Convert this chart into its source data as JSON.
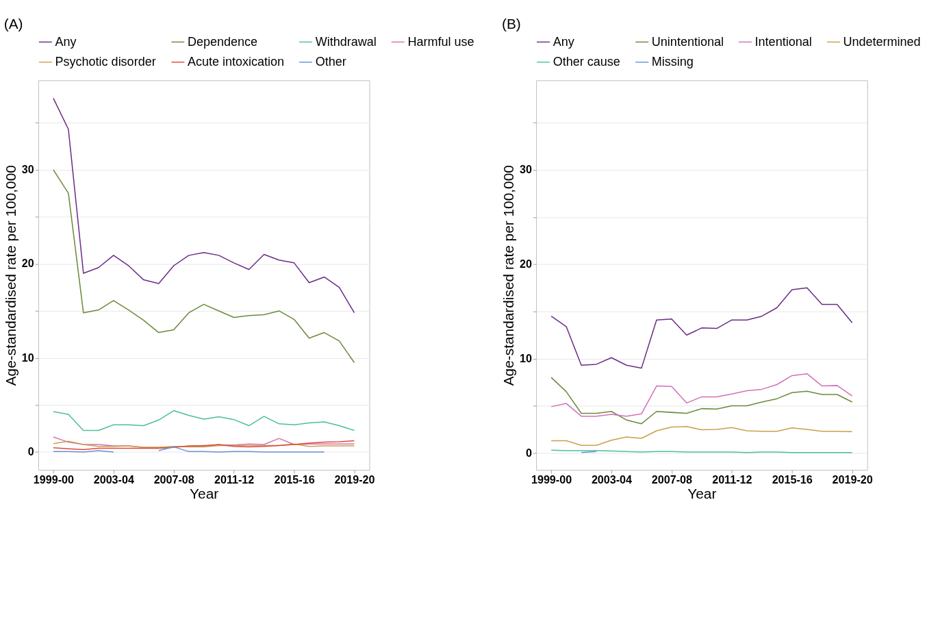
{
  "chart_data": [
    {
      "type": "line",
      "title": "(A)",
      "xlabel": "Year",
      "ylabel": "Age-standardised rate per 100,000",
      "categories": [
        "1999-00",
        null,
        null,
        null,
        "2003-04",
        null,
        null,
        null,
        "2007-08",
        null,
        null,
        null,
        "2011-12",
        null,
        null,
        null,
        "2015-16",
        null,
        null,
        null,
        "2019-20"
      ],
      "series": [
        {
          "name": "Any",
          "color": "#6a2c86",
          "values": [
            37.6,
            34.3,
            19.0,
            19.6,
            20.9,
            19.8,
            18.3,
            17.9,
            19.8,
            20.9,
            21.2,
            20.9,
            20.1,
            19.4,
            21.0,
            20.4,
            20.1,
            18.0,
            18.6,
            17.5,
            14.8
          ]
        },
        {
          "name": "Dependence",
          "color": "#6b8a3a",
          "values": [
            30.0,
            27.5,
            14.8,
            15.1,
            16.1,
            15.1,
            14.0,
            12.7,
            13.0,
            14.8,
            15.7,
            15.0,
            14.3,
            14.5,
            14.6,
            15.0,
            14.1,
            12.1,
            12.7,
            11.8,
            9.5
          ]
        },
        {
          "name": "Withdrawal",
          "color": "#4dbf99",
          "values": [
            4.3,
            4.0,
            2.3,
            2.3,
            2.9,
            2.9,
            2.8,
            3.4,
            4.4,
            3.9,
            3.5,
            3.75,
            3.45,
            2.8,
            3.8,
            3.0,
            2.9,
            3.1,
            3.2,
            2.8,
            2.3
          ]
        },
        {
          "name": "Harmful use",
          "color": "#d46fb8",
          "values": [
            1.6,
            1.05,
            0.8,
            0.8,
            0.65,
            0.65,
            0.5,
            0.5,
            0.55,
            0.6,
            0.7,
            0.75,
            0.75,
            0.85,
            0.8,
            1.45,
            0.8,
            0.85,
            0.85,
            0.85,
            0.85
          ]
        },
        {
          "name": "Psychotic disorder",
          "color": "#c9a04a",
          "values": [
            0.9,
            1.15,
            0.8,
            0.6,
            0.6,
            0.65,
            0.5,
            0.5,
            0.6,
            0.55,
            0.55,
            0.7,
            0.7,
            0.7,
            0.7,
            0.7,
            0.85,
            0.6,
            0.65,
            0.65,
            0.65
          ]
        },
        {
          "name": "Acute intoxication",
          "color": "#e0483a",
          "values": [
            0.45,
            0.35,
            0.25,
            0.4,
            0.4,
            0.4,
            0.4,
            0.4,
            0.5,
            0.65,
            0.65,
            0.8,
            0.6,
            0.55,
            0.6,
            0.7,
            0.8,
            0.95,
            1.05,
            1.1,
            1.2
          ]
        },
        {
          "name": "Other",
          "color": "#6a8fd8",
          "values": [
            0.05,
            0.05,
            0.0,
            0.15,
            0.0,
            null,
            null,
            0.15,
            0.55,
            0.05,
            0.05,
            0.0,
            0.05,
            0.05,
            0.0,
            0.0,
            0.0,
            0.0,
            0.0,
            null,
            null
          ]
        }
      ],
      "ylim": [
        -1.9,
        39.5
      ],
      "yticks": [
        0,
        {
          "value": 5,
          "label": null
        },
        10,
        {
          "value": 15,
          "label": null
        },
        20,
        {
          "value": 25,
          "label": null
        },
        30,
        {
          "value": 35,
          "label": null
        }
      ],
      "grid": true,
      "legend": "top"
    },
    {
      "type": "line",
      "title": "(B)",
      "xlabel": "Year",
      "ylabel": "Age-standardised rate per 100,000",
      "categories": [
        "1999-00",
        null,
        null,
        null,
        "2003-04",
        null,
        null,
        null,
        "2007-08",
        null,
        null,
        null,
        "2011-12",
        null,
        null,
        null,
        "2015-16",
        null,
        null,
        null,
        "2019-20"
      ],
      "series": [
        {
          "name": "Any",
          "color": "#6a2c86",
          "values": [
            14.5,
            13.4,
            9.3,
            9.4,
            10.1,
            9.3,
            9.0,
            14.1,
            14.2,
            12.5,
            13.25,
            13.2,
            14.1,
            14.1,
            14.5,
            15.4,
            17.3,
            17.5,
            15.75,
            15.75,
            13.8
          ]
        },
        {
          "name": "Unintentional",
          "color": "#6b8a3a",
          "values": [
            8.0,
            6.5,
            4.2,
            4.2,
            4.4,
            3.5,
            3.1,
            4.4,
            4.3,
            4.2,
            4.7,
            4.65,
            5.0,
            5.0,
            5.4,
            5.75,
            6.4,
            6.55,
            6.2,
            6.2,
            5.4
          ]
        },
        {
          "name": "Intentional",
          "color": "#d46fb8",
          "values": [
            4.9,
            5.25,
            3.9,
            3.9,
            4.1,
            3.9,
            4.15,
            7.1,
            7.05,
            5.3,
            5.95,
            5.95,
            6.25,
            6.6,
            6.75,
            7.25,
            8.2,
            8.4,
            7.1,
            7.15,
            6.05
          ]
        },
        {
          "name": "Undetermined",
          "color": "#c9a04a",
          "values": [
            1.3,
            1.3,
            0.8,
            0.8,
            1.35,
            1.7,
            1.55,
            2.35,
            2.75,
            2.8,
            2.45,
            2.5,
            2.7,
            2.35,
            2.3,
            2.3,
            2.65,
            2.5,
            2.3,
            2.3,
            2.25
          ]
        },
        {
          "name": "Other cause",
          "color": "#4dbf99",
          "values": [
            0.3,
            0.25,
            0.25,
            0.25,
            0.2,
            0.15,
            0.1,
            0.15,
            0.15,
            0.1,
            0.1,
            0.1,
            0.1,
            0.05,
            0.1,
            0.1,
            0.05,
            0.05,
            0.05,
            0.05,
            0.05
          ]
        },
        {
          "name": "Missing",
          "color": "#6a8fd8",
          "values": [
            null,
            null,
            0.05,
            0.15,
            null,
            null,
            null,
            null,
            null,
            null,
            null,
            null,
            null,
            null,
            null,
            null,
            null,
            null,
            null,
            null,
            null
          ]
        }
      ],
      "ylim": [
        -1.8,
        39.5
      ],
      "yticks": [
        0,
        {
          "value": 5,
          "label": null
        },
        10,
        {
          "value": 15,
          "label": null
        },
        20,
        {
          "value": 25,
          "label": null
        },
        30,
        {
          "value": 35,
          "label": null
        }
      ],
      "grid": true,
      "legend": "top"
    }
  ]
}
